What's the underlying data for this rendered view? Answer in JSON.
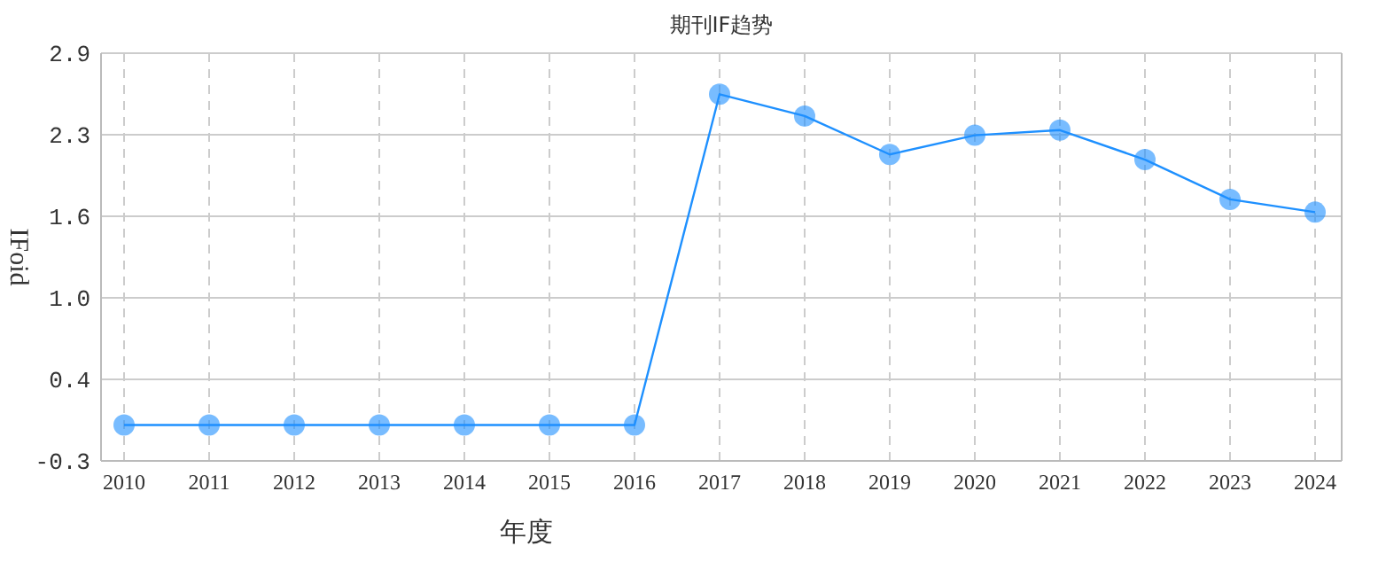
{
  "chart_data": {
    "type": "line",
    "title": "期刊IF趋势",
    "xlabel": "年度",
    "ylabel": "IFoid",
    "categories": [
      "2010",
      "2011",
      "2012",
      "2013",
      "2014",
      "2015",
      "2016",
      "2017",
      "2018",
      "2019",
      "2020",
      "2021",
      "2022",
      "2023",
      "2024"
    ],
    "series": [
      {
        "color": "#1e90ff",
        "values": [
          0,
          0,
          0,
          0,
          0,
          0,
          0,
          2.58,
          2.41,
          2.11,
          2.26,
          2.3,
          2.07,
          1.76,
          1.66
        ]
      }
    ],
    "ylim": [
      -0.28,
      2.9
    ],
    "yticks": [
      {
        "value": -0.28,
        "label": "-0.3"
      },
      {
        "value": 0.356,
        "label": "0.4"
      },
      {
        "value": 0.992,
        "label": "1.0"
      },
      {
        "value": 1.628,
        "label": "1.6"
      },
      {
        "value": 2.264,
        "label": "2.3"
      },
      {
        "value": 2.9,
        "label": "2.9"
      }
    ],
    "grid": true,
    "marker": "circle",
    "line_style": "solid"
  }
}
